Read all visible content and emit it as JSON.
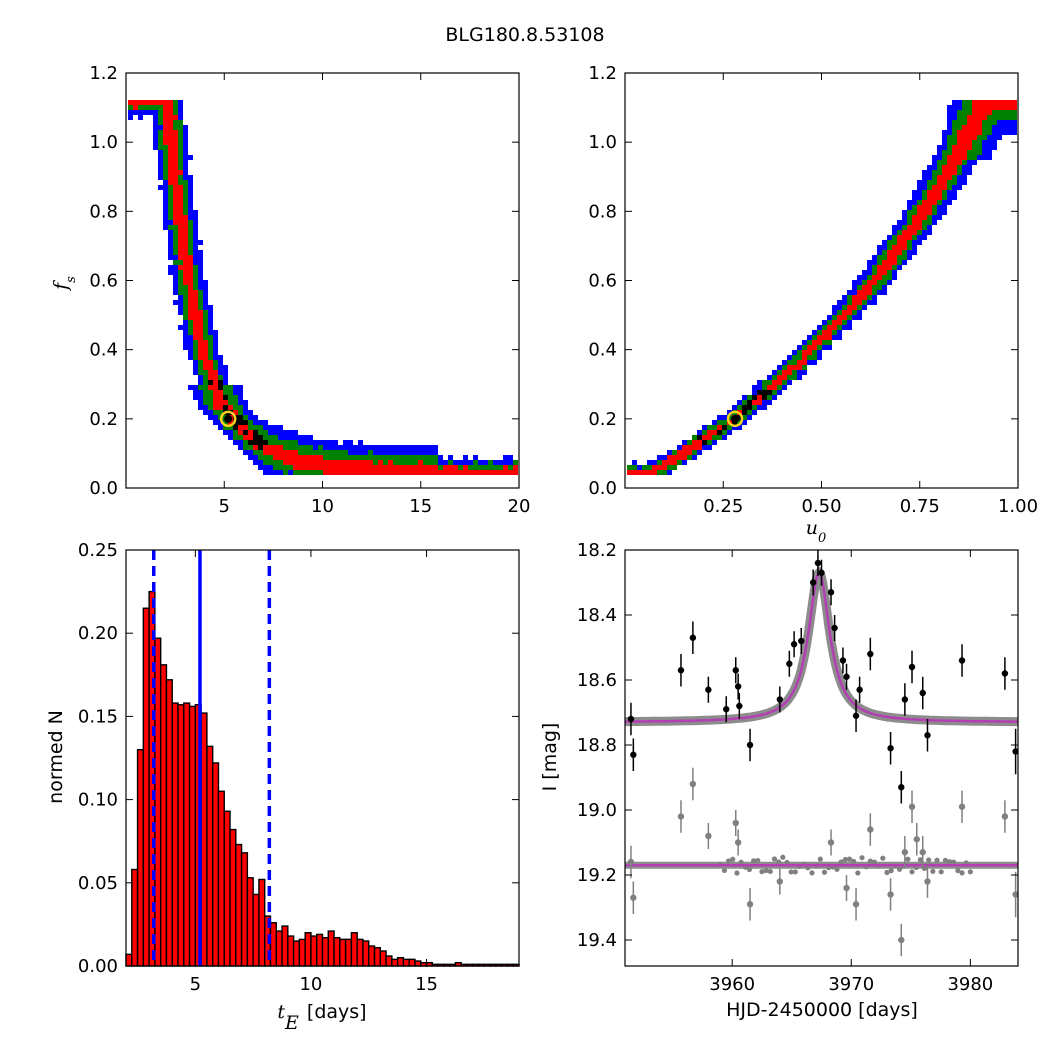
{
  "title": "BLG180.8.53108",
  "colors": {
    "blue": "#0000ff",
    "green": "#008000",
    "red": "#ff0000",
    "black": "#000000",
    "marker": "#ffd21e",
    "model": "#b43fb4",
    "gray": "#808080"
  },
  "chart_data": [
    {
      "id": "fs_vs_tE",
      "type": "heatmap",
      "xlabel": "",
      "ylabel": "f_s",
      "xlim": [
        0,
        20
      ],
      "ylim": [
        0,
        1.2
      ],
      "xticks": [
        5,
        10,
        15,
        20
      ],
      "yticks": [
        0.0,
        0.2,
        0.4,
        0.6,
        0.8,
        1.0,
        1.2
      ],
      "xtick_labels": [
        "5",
        "10",
        "15",
        "20"
      ],
      "ytick_labels": [
        "0.0",
        "0.2",
        "0.4",
        "0.6",
        "0.8",
        "1.0",
        "1.2"
      ],
      "curve": [
        [
          2.1,
          1.12
        ],
        [
          2.4,
          0.95
        ],
        [
          2.7,
          0.8
        ],
        [
          3.0,
          0.67
        ],
        [
          3.3,
          0.57
        ],
        [
          3.6,
          0.48
        ],
        [
          4.0,
          0.38
        ],
        [
          4.5,
          0.3
        ],
        [
          5.0,
          0.23
        ],
        [
          5.5,
          0.2
        ],
        [
          6.0,
          0.165
        ],
        [
          7.0,
          0.12
        ],
        [
          8.0,
          0.095
        ],
        [
          9.0,
          0.08
        ],
        [
          10.0,
          0.068
        ],
        [
          11.0,
          0.06
        ],
        [
          13.0,
          0.052
        ],
        [
          15.0,
          0.048
        ],
        [
          17.0,
          0.045
        ],
        [
          19.0,
          0.043
        ]
      ],
      "best_fit": [
        5.2,
        0.2
      ],
      "levels": [
        "blue",
        "green",
        "red",
        "black"
      ]
    },
    {
      "id": "fs_vs_u0",
      "type": "heatmap",
      "xlabel": "u_0",
      "ylabel": "",
      "xlim": [
        0.0,
        1.0
      ],
      "ylim": [
        0,
        1.2
      ],
      "xticks": [
        0.25,
        0.5,
        0.75,
        1.0
      ],
      "yticks": [
        0.0,
        0.2,
        0.4,
        0.6,
        0.8,
        1.0,
        1.2
      ],
      "xtick_labels": [
        "0.25",
        "0.50",
        "0.75",
        "1.00"
      ],
      "ytick_labels": [
        "0.0",
        "0.2",
        "0.4",
        "0.6",
        "0.8",
        "1.0",
        "1.2"
      ],
      "curve": [
        [
          0.06,
          0.04
        ],
        [
          0.1,
          0.065
        ],
        [
          0.15,
          0.1
        ],
        [
          0.2,
          0.14
        ],
        [
          0.25,
          0.175
        ],
        [
          0.3,
          0.22
        ],
        [
          0.35,
          0.27
        ],
        [
          0.4,
          0.315
        ],
        [
          0.45,
          0.37
        ],
        [
          0.5,
          0.43
        ],
        [
          0.55,
          0.49
        ],
        [
          0.6,
          0.55
        ],
        [
          0.65,
          0.62
        ],
        [
          0.7,
          0.7
        ],
        [
          0.75,
          0.78
        ],
        [
          0.8,
          0.87
        ],
        [
          0.85,
          0.97
        ],
        [
          0.9,
          1.08
        ],
        [
          0.92,
          1.12
        ]
      ],
      "best_fit": [
        0.28,
        0.2
      ],
      "levels": [
        "blue",
        "green",
        "red",
        "black"
      ]
    },
    {
      "id": "tE_histogram",
      "type": "bar",
      "xlabel": "[days]",
      "ylabel": "normed N",
      "xlim": [
        2,
        19
      ],
      "ylim": [
        0,
        0.25
      ],
      "xticks": [
        5,
        10,
        15
      ],
      "yticks": [
        0.0,
        0.05,
        0.1,
        0.15,
        0.2,
        0.25
      ],
      "xtick_labels": [
        "5",
        "10",
        "15"
      ],
      "ytick_labels": [
        "0.00",
        "0.05",
        "0.10",
        "0.15",
        "0.20",
        "0.25"
      ],
      "bin_start": 2.0,
      "bin_width": 0.25,
      "values": [
        0.007,
        0.058,
        0.13,
        0.215,
        0.225,
        0.197,
        0.181,
        0.172,
        0.158,
        0.157,
        0.158,
        0.156,
        0.157,
        0.152,
        0.132,
        0.122,
        0.105,
        0.093,
        0.082,
        0.073,
        0.068,
        0.053,
        0.043,
        0.052,
        0.03,
        0.026,
        0.021,
        0.024,
        0.018,
        0.015,
        0.016,
        0.02,
        0.018,
        0.019,
        0.017,
        0.021,
        0.017,
        0.016,
        0.016,
        0.02,
        0.016,
        0.015,
        0.012,
        0.011,
        0.009,
        0.006,
        0.004,
        0.005,
        0.004,
        0.004,
        0.003,
        0.002,
        0.002,
        0.001,
        0.001,
        0.001,
        0.001,
        0.002,
        0.001,
        0.001,
        0.001,
        0.001,
        0.001,
        0.001,
        0.001,
        0.001,
        0.001,
        0.001
      ],
      "median": 5.2,
      "lower": 3.2,
      "upper": 8.2
    },
    {
      "id": "light_curve",
      "type": "scatter",
      "xlabel": "HJD-2450000 [days]",
      "ylabel": "I [mag]",
      "xlim": [
        3951,
        3984
      ],
      "ylim": [
        19.48,
        18.2
      ],
      "y_inverted": true,
      "xticks": [
        3960,
        3970,
        3980
      ],
      "yticks": [
        18.2,
        18.4,
        18.6,
        18.8,
        19.0,
        19.2,
        19.4
      ],
      "xtick_labels": [
        "3960",
        "3970",
        "3980"
      ],
      "ytick_labels": [
        "18.2",
        "18.4",
        "18.6",
        "18.8",
        "19.0",
        "19.2",
        "19.4"
      ],
      "model": {
        "t0": 3967.3,
        "base": 18.73,
        "peak": 18.27,
        "width": 1.1,
        "baseline_resid": 19.17
      },
      "series": [
        {
          "color": "black",
          "points": [
            [
              3951.5,
              18.72,
              0.05
            ],
            [
              3951.7,
              18.83,
              0.05
            ],
            [
              3955.7,
              18.57,
              0.05
            ],
            [
              3956.7,
              18.47,
              0.05
            ],
            [
              3958,
              18.63,
              0.04
            ],
            [
              3959.5,
              18.69,
              0.04
            ],
            [
              3960.3,
              18.57,
              0.04
            ],
            [
              3960.5,
              18.62,
              0.04
            ],
            [
              3960.6,
              18.68,
              0.04
            ],
            [
              3961.5,
              18.8,
              0.05
            ],
            [
              3964,
              18.66,
              0.04
            ],
            [
              3964.8,
              18.55,
              0.04
            ],
            [
              3965.2,
              18.49,
              0.04
            ],
            [
              3965.8,
              18.48,
              0.04
            ],
            [
              3966.8,
              18.3,
              0.04
            ],
            [
              3967.2,
              18.24,
              0.04
            ],
            [
              3967.5,
              18.27,
              0.04
            ],
            [
              3968.3,
              18.33,
              0.04
            ],
            [
              3968.6,
              18.44,
              0.04
            ],
            [
              3969.3,
              18.54,
              0.04
            ],
            [
              3969.6,
              18.59,
              0.04
            ],
            [
              3970.4,
              18.71,
              0.05
            ],
            [
              3970.7,
              18.63,
              0.04
            ],
            [
              3971.6,
              18.52,
              0.05
            ],
            [
              3973.3,
              18.81,
              0.05
            ],
            [
              3974.2,
              18.93,
              0.05
            ],
            [
              3974.5,
              18.66,
              0.05
            ],
            [
              3975.1,
              18.56,
              0.05
            ],
            [
              3976,
              18.64,
              0.05
            ],
            [
              3976.4,
              18.77,
              0.05
            ],
            [
              3979.3,
              18.54,
              0.05
            ],
            [
              3982.9,
              18.58,
              0.05
            ],
            [
              3983.8,
              18.82,
              0.07
            ]
          ]
        },
        {
          "color": "gray",
          "points": [
            [
              3951.5,
              19.16,
              0.05
            ],
            [
              3951.7,
              19.27,
              0.05
            ],
            [
              3955.7,
              19.02,
              0.05
            ],
            [
              3956.7,
              18.92,
              0.05
            ],
            [
              3958,
              19.08,
              0.04
            ],
            [
              3960.3,
              19.04,
              0.04
            ],
            [
              3960.5,
              19.1,
              0.04
            ],
            [
              3961.5,
              19.29,
              0.05
            ],
            [
              3964,
              19.22,
              0.04
            ],
            [
              3968.3,
              19.1,
              0.04
            ],
            [
              3969.6,
              19.24,
              0.04
            ],
            [
              3970.4,
              19.29,
              0.05
            ],
            [
              3971.6,
              19.06,
              0.05
            ],
            [
              3973.3,
              19.26,
              0.05
            ],
            [
              3974.2,
              19.4,
              0.05
            ],
            [
              3974.5,
              19.13,
              0.05
            ],
            [
              3975.1,
              18.99,
              0.05
            ],
            [
              3975.5,
              19.09,
              0.05
            ],
            [
              3976,
              19.13,
              0.05
            ],
            [
              3976.4,
              19.22,
              0.05
            ],
            [
              3979.3,
              18.99,
              0.05
            ],
            [
              3982.9,
              19.02,
              0.05
            ],
            [
              3983.8,
              19.26,
              0.07
            ]
          ]
        }
      ]
    }
  ]
}
